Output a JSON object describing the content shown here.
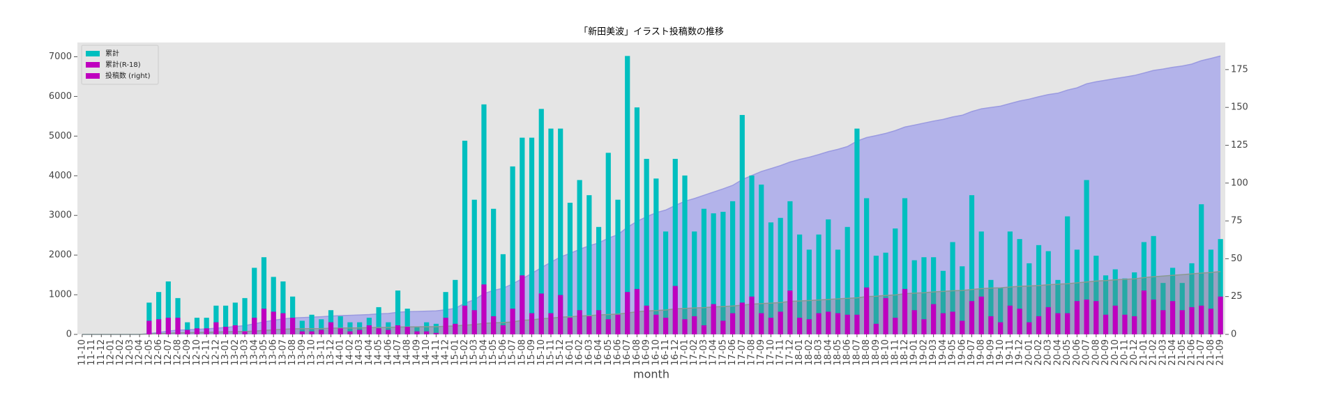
{
  "chart_data": {
    "type": "bar",
    "title": "「新田美波」イラスト投稿数の推移",
    "x_label": "month",
    "categories": [
      "11-10",
      "11-11",
      "11-12",
      "12-01",
      "12-02",
      "12-03",
      "12-04",
      "12-05",
      "12-06",
      "12-07",
      "12-08",
      "12-09",
      "12-10",
      "12-11",
      "12-12",
      "13-01",
      "13-02",
      "13-03",
      "13-04",
      "13-05",
      "13-06",
      "13-07",
      "13-08",
      "13-09",
      "13-10",
      "13-11",
      "13-12",
      "14-01",
      "14-02",
      "14-03",
      "14-04",
      "14-05",
      "14-06",
      "14-07",
      "14-08",
      "14-09",
      "14-10",
      "14-11",
      "14-12",
      "15-01",
      "15-02",
      "15-03",
      "15-04",
      "15-05",
      "15-06",
      "15-07",
      "15-08",
      "15-09",
      "15-10",
      "15-11",
      "15-12",
      "16-01",
      "16-02",
      "16-03",
      "16-04",
      "16-05",
      "16-06",
      "16-07",
      "16-08",
      "16-09",
      "16-10",
      "16-11",
      "16-12",
      "17-01",
      "17-02",
      "17-03",
      "17-04",
      "17-05",
      "17-06",
      "17-07",
      "17-08",
      "17-09",
      "17-10",
      "17-11",
      "17-12",
      "18-01",
      "18-02",
      "18-03",
      "18-04",
      "18-05",
      "18-06",
      "18-07",
      "18-08",
      "18-09",
      "18-10",
      "18-11",
      "18-12",
      "19-01",
      "19-02",
      "19-03",
      "19-04",
      "19-05",
      "19-06",
      "19-07",
      "19-08",
      "19-09",
      "19-10",
      "19-11",
      "19-12",
      "20-01",
      "20-02",
      "20-03",
      "20-04",
      "20-05",
      "20-06",
      "20-07",
      "20-08",
      "20-09",
      "20-10",
      "20-11",
      "20-12",
      "21-01",
      "21-02",
      "21-03",
      "21-04",
      "21-05",
      "21-06",
      "21-07",
      "21-08",
      "21-09"
    ],
    "series": [
      {
        "name": "累計",
        "type": "area",
        "axis": "y",
        "color": "#b3b3ea",
        "line_color": "#9a9ae0",
        "legend_color": "#00bfbf",
        "values": [
          0,
          0,
          0,
          0,
          0,
          0,
          0,
          21,
          49,
          84,
          108,
          116,
          127,
          138,
          157,
          176,
          197,
          221,
          265,
          316,
          354,
          389,
          414,
          423,
          436,
          446,
          462,
          474,
          482,
          490,
          501,
          519,
          527,
          556,
          573,
          578,
          586,
          593,
          621,
          657,
          785,
          874,
          1026,
          1109,
          1162,
          1273,
          1403,
          1533,
          1682,
          1818,
          1954,
          2041,
          2143,
          2235,
          2306,
          2426,
          2515,
          2699,
          2849,
          2965,
          3068,
          3136,
          3252,
          3357,
          3425,
          3508,
          3588,
          3669,
          3757,
          3902,
          4007,
          4106,
          4180,
          4257,
          4345,
          4411,
          4467,
          4533,
          4609,
          4665,
          4736,
          4872,
          4962,
          5014,
          5068,
          5138,
          5228,
          5277,
          5328,
          5379,
          5421,
          5482,
          5527,
          5619,
          5687,
          5723,
          5754,
          5822,
          5885,
          5932,
          5991,
          6046,
          6082,
          6160,
          6216,
          6318,
          6370,
          6409,
          6452,
          6489,
          6530,
          6591,
          6656,
          6690,
          6734,
          6768,
          6815,
          6901,
          6957,
          7020
        ]
      },
      {
        "name": "累計(R-18)",
        "type": "area",
        "axis": "y",
        "color": "rgba(110,130,120,0.35)",
        "line_color": "#8a9a90",
        "legend_color": "#bf00bf",
        "values": [
          0,
          0,
          0,
          0,
          0,
          0,
          0,
          9,
          19,
          30,
          41,
          44,
          48,
          52,
          60,
          65,
          71,
          73,
          84,
          101,
          116,
          130,
          141,
          143,
          145,
          148,
          156,
          160,
          162,
          165,
          171,
          175,
          178,
          184,
          189,
          191,
          193,
          194,
          205,
          212,
          231,
          247,
          280,
          292,
          298,
          315,
          354,
          368,
          395,
          409,
          435,
          446,
          462,
          474,
          490,
          500,
          513,
          541,
          571,
          590,
          603,
          614,
          646,
          656,
          668,
          674,
          694,
          703,
          717,
          738,
          763,
          777,
          788,
          803,
          832,
          843,
          853,
          867,
          882,
          896,
          909,
          922,
          953,
          960,
          984,
          995,
          1025,
          1041,
          1051,
          1071,
          1085,
          1100,
          1109,
          1131,
          1156,
          1168,
          1176,
          1195,
          1212,
          1220,
          1232,
          1250,
          1264,
          1278,
          1300,
          1323,
          1345,
          1358,
          1377,
          1390,
          1402,
          1431,
          1454,
          1470,
          1492,
          1508,
          1526,
          1545,
          1562,
          1587
        ]
      },
      {
        "name": "投稿数 (right)",
        "type": "bar",
        "axis": "y2",
        "color": "#00bfbf",
        "legend_color": "#bf00bf",
        "values": [
          0,
          0,
          0,
          0,
          0,
          0,
          0,
          21,
          28,
          35,
          24,
          8,
          11,
          11,
          19,
          19,
          21,
          24,
          44,
          51,
          38,
          35,
          25,
          9,
          13,
          10,
          16,
          12,
          8,
          8,
          11,
          18,
          8,
          29,
          17,
          5,
          8,
          7,
          28,
          36,
          128,
          89,
          152,
          83,
          53,
          111,
          130,
          130,
          149,
          136,
          136,
          87,
          102,
          92,
          71,
          120,
          89,
          184,
          150,
          116,
          103,
          68,
          116,
          105,
          68,
          83,
          80,
          81,
          88,
          145,
          105,
          99,
          74,
          77,
          88,
          66,
          56,
          66,
          76,
          56,
          71,
          136,
          90,
          52,
          54,
          70,
          90,
          49,
          51,
          51,
          42,
          61,
          45,
          92,
          68,
          36,
          31,
          68,
          63,
          47,
          59,
          55,
          36,
          78,
          56,
          102,
          52,
          39,
          43,
          37,
          41,
          61,
          65,
          34,
          44,
          34,
          47,
          86,
          56,
          63
        ]
      },
      {
        "type": "bar",
        "axis": "y2",
        "color": "#bf00bf",
        "values": [
          0,
          0,
          0,
          0,
          0,
          0,
          0,
          9,
          10,
          11,
          11,
          3,
          4,
          4,
          8,
          5,
          6,
          2,
          11,
          17,
          15,
          14,
          11,
          2,
          2,
          3,
          8,
          4,
          2,
          3,
          6,
          4,
          3,
          6,
          5,
          2,
          2,
          1,
          11,
          7,
          19,
          16,
          33,
          12,
          6,
          17,
          39,
          14,
          27,
          14,
          26,
          11,
          16,
          12,
          16,
          10,
          13,
          28,
          30,
          19,
          13,
          11,
          32,
          10,
          12,
          6,
          20,
          9,
          14,
          21,
          25,
          14,
          11,
          15,
          29,
          11,
          10,
          14,
          15,
          14,
          13,
          13,
          31,
          7,
          24,
          11,
          30,
          16,
          10,
          20,
          14,
          15,
          9,
          22,
          25,
          12,
          8,
          19,
          17,
          8,
          12,
          18,
          14,
          14,
          22,
          23,
          22,
          13,
          19,
          13,
          12,
          29,
          23,
          16,
          22,
          16,
          18,
          19,
          17,
          25
        ]
      }
    ],
    "ylim": [
      0,
      7360
    ],
    "yticks": [
      0,
      1000,
      2000,
      3000,
      4000,
      5000,
      6000,
      7000
    ],
    "y2lim": [
      0,
      192.9
    ],
    "y2ticks": [
      0,
      25,
      50,
      75,
      100,
      125,
      150,
      175
    ],
    "grid": false,
    "legend": "upper left",
    "background": "#e5e5e5"
  }
}
